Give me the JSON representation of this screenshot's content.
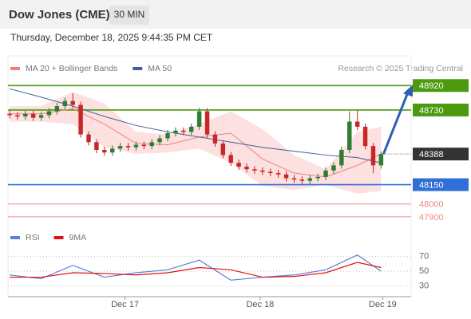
{
  "title": "Dow Jones (CME)",
  "timeframe": "30 MIN",
  "datetime": "Thursday, December 18, 2025 9:44:35 PM CET",
  "source": "Research © 2025 Trading Central",
  "chart_data": [
    {
      "type": "candlestick",
      "up_color": "#2e7d32",
      "down_color": "#c62828",
      "open": [
        48700,
        48690,
        48680,
        48700,
        48670,
        48690,
        48720,
        48760,
        48800,
        48770,
        48540,
        48480,
        48420,
        48400,
        48430,
        48450,
        48440,
        48460,
        48450,
        48480,
        48510,
        48550,
        48570,
        48560,
        48600,
        48720,
        48540,
        48470,
        48380,
        48320,
        48290,
        48270,
        48260,
        48250,
        48240,
        48230,
        48200,
        48190,
        48180,
        48200,
        48210,
        48260,
        48300,
        48420,
        48640,
        48600,
        48450,
        48300
      ],
      "high": [
        48725,
        48715,
        48725,
        48725,
        48715,
        48745,
        48785,
        48825,
        48860,
        48795,
        48565,
        48505,
        48445,
        48455,
        48475,
        48475,
        48485,
        48485,
        48505,
        48535,
        48575,
        48595,
        48595,
        48625,
        48745,
        48745,
        48565,
        48495,
        48405,
        48345,
        48315,
        48295,
        48285,
        48275,
        48265,
        48255,
        48225,
        48215,
        48225,
        48235,
        48285,
        48325,
        48445,
        48720,
        48730,
        48625,
        48475,
        48410
      ],
      "low": [
        48665,
        48655,
        48655,
        48645,
        48645,
        48665,
        48695,
        48735,
        48745,
        48515,
        48455,
        48395,
        48375,
        48375,
        48405,
        48415,
        48415,
        48425,
        48425,
        48455,
        48485,
        48525,
        48535,
        48535,
        48575,
        48515,
        48445,
        48355,
        48295,
        48265,
        48245,
        48235,
        48225,
        48215,
        48205,
        48175,
        48165,
        48155,
        48155,
        48175,
        48185,
        48235,
        48275,
        48395,
        48575,
        48425,
        48240,
        48275
      ],
      "close": [
        48690,
        48680,
        48700,
        48670,
        48690,
        48720,
        48760,
        48800,
        48770,
        48540,
        48480,
        48420,
        48400,
        48430,
        48450,
        48440,
        48460,
        48450,
        48480,
        48510,
        48550,
        48570,
        48560,
        48600,
        48720,
        48540,
        48470,
        48380,
        48320,
        48290,
        48270,
        48260,
        48250,
        48240,
        48230,
        48200,
        48190,
        48180,
        48200,
        48210,
        48260,
        48300,
        48420,
        48640,
        48600,
        48450,
        48300,
        48388
      ],
      "xlim": [
        -0.2,
        50.8
      ],
      "ylim": [
        47850,
        48965
      ],
      "overlays": {
        "x": [
          0,
          4,
          8,
          12,
          16,
          20,
          24,
          28,
          32,
          36,
          40,
          44,
          47
        ],
        "series": [
          {
            "name": "MA 20 + Bollinger Bands",
            "color": "#f08080",
            "band_color": "#fde0e0",
            "values": [
              48700,
              48700,
              48740,
              48620,
              48470,
              48460,
              48520,
              48550,
              48350,
              48240,
              48210,
              48300,
              48390
            ],
            "upper": [
              48760,
              48760,
              48870,
              48780,
              48560,
              48540,
              48620,
              48720,
              48580,
              48380,
              48270,
              48560,
              48600
            ],
            "lower": [
              48640,
              48640,
              48620,
              48440,
              48390,
              48400,
              48430,
              48320,
              48140,
              48110,
              48150,
              48080,
              48100
            ]
          },
          {
            "name": "MA 50",
            "color": "#3f5f9f",
            "values": [
              48895,
              48830,
              48760,
              48680,
              48610,
              48560,
              48520,
              48480,
              48440,
              48410,
              48380,
              48360,
              48320
            ]
          }
        ]
      },
      "levels": [
        {
          "value": 48920,
          "color": "#4c9a0e",
          "style": "box"
        },
        {
          "value": 48730,
          "color": "#4c9a0e",
          "style": "box"
        },
        {
          "value": 48388,
          "color": "#333333",
          "style": "last"
        },
        {
          "value": 48150,
          "color": "#2f6fd6",
          "style": "box"
        },
        {
          "value": 48000,
          "color": "#f08a8a",
          "style": "text"
        },
        {
          "value": 47900,
          "color": "#f08a8a",
          "style": "text"
        }
      ]
    },
    {
      "type": "line",
      "x": [
        0,
        4,
        8,
        12,
        16,
        20,
        24,
        28,
        32,
        36,
        40,
        44,
        47
      ],
      "series": [
        {
          "name": "RSI",
          "color": "#5b7fd6",
          "values": [
            45,
            40,
            58,
            42,
            48,
            52,
            65,
            38,
            42,
            45,
            52,
            72,
            50
          ]
        },
        {
          "name": "9MA",
          "color": "#e01010",
          "values": [
            42,
            42,
            48,
            47,
            45,
            48,
            55,
            52,
            42,
            43,
            48,
            62,
            55
          ]
        }
      ],
      "xlim": [
        -0.2,
        50.8
      ],
      "ylim": [
        20,
        90
      ],
      "yticks": [
        30,
        50,
        70
      ],
      "xticks": [
        {
          "value": 14.6,
          "label": "Dec 17"
        },
        {
          "value": 31.7,
          "label": "Dec 18"
        },
        {
          "value": 47.2,
          "label": "Dec 19"
        }
      ]
    }
  ]
}
